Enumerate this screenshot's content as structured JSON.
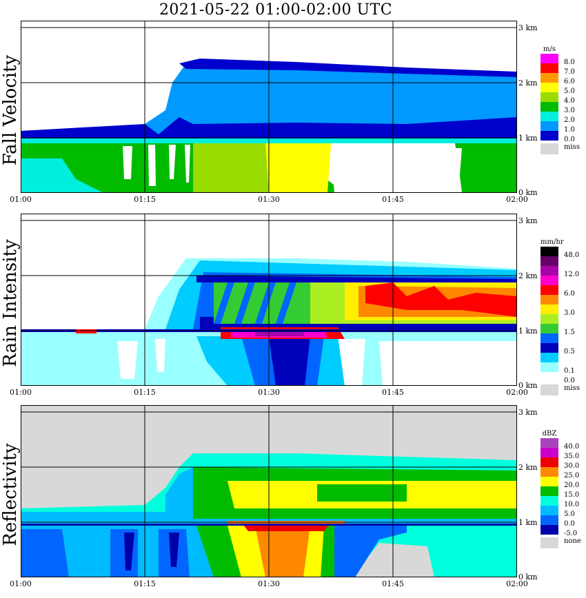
{
  "title": "2021-05-22   01:00-02:00 UTC",
  "x_ticks": [
    "01:00",
    "01:15",
    "01:30",
    "01:45",
    "02:00"
  ],
  "y_ticks": [
    "3 km",
    "2 km",
    "1 km",
    "0 km"
  ],
  "panels": [
    {
      "id": "fall-velocity",
      "label": "Fall Velocity",
      "unit": "m/s",
      "legend": [
        {
          "label": "8.0",
          "color": "#ff00ff"
        },
        {
          "label": "7.0",
          "color": "#ff0000"
        },
        {
          "label": "6.0",
          "color": "#ff9900"
        },
        {
          "label": "5.0",
          "color": "#ffff00"
        },
        {
          "label": "4.0",
          "color": "#99dd00"
        },
        {
          "label": "3.0",
          "color": "#00bb00"
        },
        {
          "label": "2.0",
          "color": "#00eedd"
        },
        {
          "label": "1.0",
          "color": "#0099ff"
        },
        {
          "label": "0.0",
          "color": "#0000cc"
        }
      ],
      "missing": "miss"
    },
    {
      "id": "rain-intensity",
      "label": "Rain Intensity",
      "unit": "mm/hr",
      "legend": [
        {
          "label": "48.0",
          "color": "#000000"
        },
        {
          "label": "",
          "color": "#660066"
        },
        {
          "label": "12.0",
          "color": "#aa00aa"
        },
        {
          "label": "",
          "color": "#ff00cc"
        },
        {
          "label": "6.0",
          "color": "#ff0000"
        },
        {
          "label": "",
          "color": "#ff8800"
        },
        {
          "label": "3.0",
          "color": "#ffee00"
        },
        {
          "label": "",
          "color": "#aaee22"
        },
        {
          "label": "1.5",
          "color": "#33cc33"
        },
        {
          "label": "",
          "color": "#0066ff"
        },
        {
          "label": "0.5",
          "color": "#0000bb"
        },
        {
          "label": "",
          "color": "#00ccff"
        },
        {
          "label": "0.1",
          "color": "#99ffff"
        },
        {
          "label": "0.0",
          "color": "#ffffff"
        }
      ],
      "missing": "miss"
    },
    {
      "id": "reflectivity",
      "label": "Reflectivity",
      "unit": "dBZ",
      "legend": [
        {
          "label": "40.0",
          "color": "#aa44bb"
        },
        {
          "label": "35.0",
          "color": "#cc00cc"
        },
        {
          "label": "30.0",
          "color": "#ee0000"
        },
        {
          "label": "25.0",
          "color": "#ff8800"
        },
        {
          "label": "20.0",
          "color": "#ffff00"
        },
        {
          "label": "15.0",
          "color": "#00bb00"
        },
        {
          "label": "10.0",
          "color": "#00ffdd"
        },
        {
          "label": "5.0",
          "color": "#00bbff"
        },
        {
          "label": "0.0",
          "color": "#0066ff"
        },
        {
          "label": "-5.0",
          "color": "#0000aa"
        }
      ],
      "missing": "none"
    }
  ],
  "chart_data": [
    {
      "type": "heatmap",
      "variable": "Fall Velocity",
      "unit": "m/s",
      "x_range": [
        "01:00",
        "02:00"
      ],
      "y_range_km": [
        0,
        3.1
      ],
      "grid": true,
      "bands": [
        {
          "from": "01:00",
          "to": "01:15",
          "ylow": 0,
          "yhigh": 1.0,
          "value": 2.5
        },
        {
          "from": "01:00",
          "to": "01:15",
          "ylow": 1.0,
          "yhigh": 1.3,
          "value": 1.0
        },
        {
          "from": "01:15",
          "to": "01:30",
          "ylow": 0,
          "yhigh": 1.0,
          "value": 3.5
        },
        {
          "from": "01:15",
          "to": "01:30",
          "ylow": 1.0,
          "yhigh": 2.3,
          "value": 1.0
        },
        {
          "from": "01:30",
          "to": "01:45",
          "ylow": 0,
          "yhigh": 1.0,
          "value": 4.5
        },
        {
          "from": "01:30",
          "to": "01:45",
          "ylow": 1.0,
          "yhigh": 2.2,
          "value": 1.0
        },
        {
          "from": "01:45",
          "to": "02:00",
          "ylow": 1.0,
          "yhigh": 2.2,
          "value": 1.0
        }
      ]
    },
    {
      "type": "heatmap",
      "variable": "Rain Intensity",
      "unit": "mm/hr",
      "x_range": [
        "01:00",
        "02:00"
      ],
      "y_range_km": [
        0,
        3.1
      ],
      "grid": true,
      "bands": [
        {
          "from": "01:00",
          "to": "01:15",
          "ylow": 0,
          "yhigh": 1.0,
          "value": 0.1
        },
        {
          "from": "01:15",
          "to": "01:30",
          "ylow": 1.0,
          "yhigh": 2.0,
          "value": 1.5
        },
        {
          "from": "01:25",
          "to": "01:35",
          "ylow": 0.9,
          "yhigh": 1.1,
          "value": 12.0
        },
        {
          "from": "01:35",
          "to": "02:00",
          "ylow": 1.1,
          "yhigh": 2.0,
          "value": 6.0
        },
        {
          "from": "01:22",
          "to": "01:38",
          "ylow": 0,
          "yhigh": 0.9,
          "value": 0.5
        }
      ]
    },
    {
      "type": "heatmap",
      "variable": "Reflectivity",
      "unit": "dBZ",
      "x_range": [
        "01:00",
        "02:00"
      ],
      "y_range_km": [
        0,
        3.1
      ],
      "grid": true,
      "bands": [
        {
          "from": "01:00",
          "to": "01:15",
          "ylow": 0,
          "yhigh": 1.0,
          "value": 5.0
        },
        {
          "from": "01:20",
          "to": "02:00",
          "ylow": 1.0,
          "yhigh": 2.2,
          "value": 15.0
        },
        {
          "from": "01:30",
          "to": "02:00",
          "ylow": 1.3,
          "yhigh": 1.9,
          "value": 20.0
        },
        {
          "from": "01:28",
          "to": "01:36",
          "ylow": 0.9,
          "yhigh": 1.0,
          "value": 30.0
        },
        {
          "from": "01:25",
          "to": "01:37",
          "ylow": 0,
          "yhigh": 0.9,
          "value": 22.0
        }
      ]
    }
  ]
}
